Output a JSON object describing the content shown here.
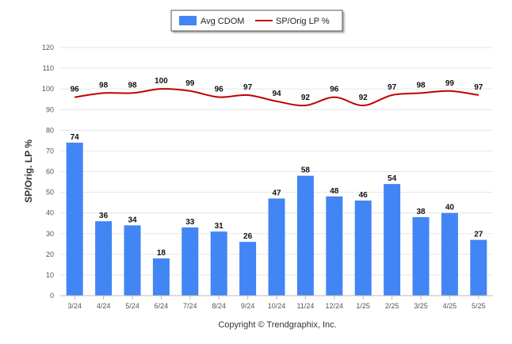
{
  "chart_data": {
    "type": "bar",
    "categories": [
      "3/24",
      "4/24",
      "5/24",
      "6/24",
      "7/24",
      "8/24",
      "9/24",
      "10/24",
      "11/24",
      "12/24",
      "1/25",
      "2/25",
      "3/25",
      "4/25",
      "5/25"
    ],
    "series": [
      {
        "name": "Avg CDOM",
        "type": "bar",
        "color": "#4285f4",
        "values": [
          74,
          36,
          34,
          18,
          33,
          31,
          26,
          47,
          58,
          48,
          46,
          54,
          38,
          40,
          27
        ]
      },
      {
        "name": "SP/Orig LP %",
        "type": "line",
        "color": "#c00000",
        "values": [
          96,
          98,
          98,
          100,
          99,
          96,
          97,
          94,
          92,
          96,
          92,
          97,
          98,
          99,
          97
        ]
      }
    ],
    "ylabel": "SP/Orig. LP %",
    "ylim": [
      0,
      120
    ],
    "yticks": [
      0,
      10,
      20,
      30,
      40,
      50,
      60,
      70,
      80,
      90,
      100,
      110,
      120
    ],
    "grid": true,
    "legend_position": "top-center",
    "credit": "Copyright © Trendgraphix, Inc."
  }
}
